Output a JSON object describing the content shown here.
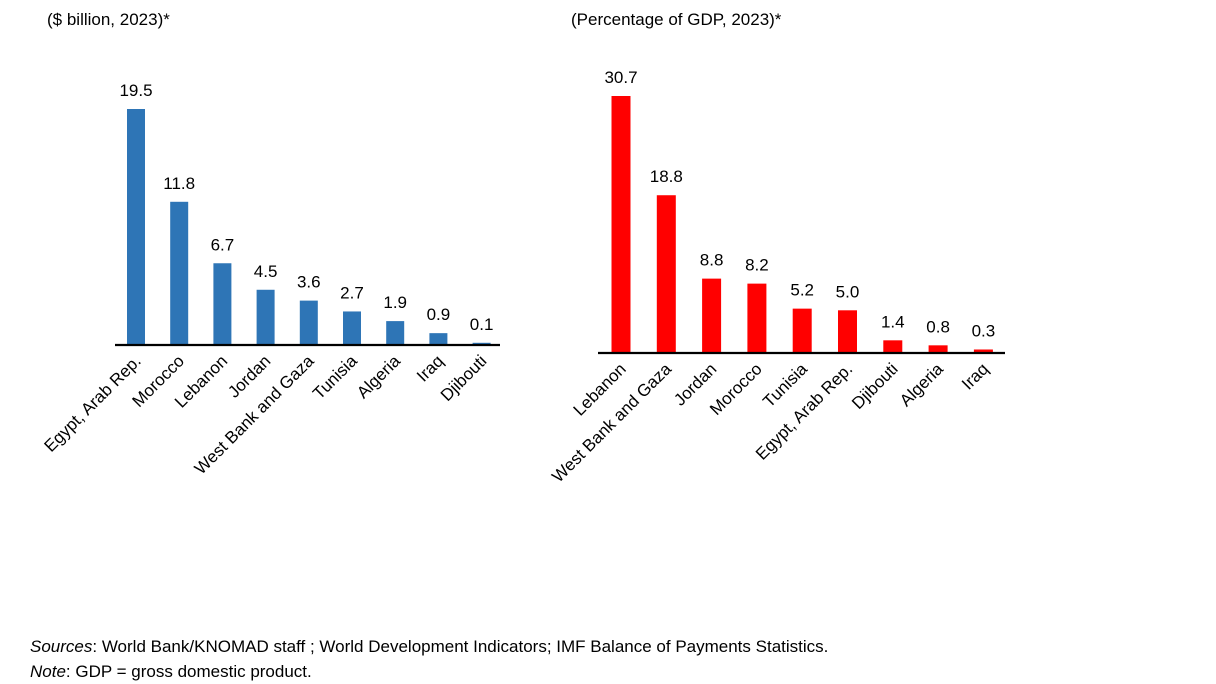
{
  "chart_data": [
    {
      "type": "bar",
      "title": "",
      "subtitle": "($ billion, 2023)*",
      "xlabel": "",
      "ylabel": "",
      "categories": [
        "Egypt, Arab Rep.",
        "Morocco",
        "Lebanon",
        "Jordan",
        "West Bank and Gaza",
        "Tunisia",
        "Algeria",
        "Iraq",
        "Djibouti"
      ],
      "values": [
        19.5,
        11.8,
        6.7,
        4.5,
        3.6,
        2.7,
        1.9,
        0.9,
        0.1
      ],
      "data_labels": [
        "19.5",
        "11.8",
        "6.7",
        "4.5",
        "3.6",
        "2.7",
        "1.9",
        "0.9",
        "0.1"
      ],
      "color": "#2E75B6",
      "grid": false,
      "legend": "none",
      "ylim": [
        0,
        19.5
      ]
    },
    {
      "type": "bar",
      "title": "",
      "subtitle": "(Percentage of GDP, 2023)*",
      "xlabel": "",
      "ylabel": "",
      "categories": [
        "Lebanon",
        "West Bank and Gaza",
        "Jordan",
        "Morocco",
        "Tunisia",
        "Egypt, Arab Rep.",
        "Djibouti",
        "Algeria",
        "Iraq"
      ],
      "values": [
        30.7,
        18.8,
        8.8,
        8.2,
        5.2,
        5.0,
        1.4,
        0.8,
        0.3
      ],
      "data_labels": [
        "30.7",
        "18.8",
        "8.8",
        "8.2",
        "5.2",
        "5.0",
        "1.4",
        "0.8",
        "0.3"
      ],
      "color": "#FF0000",
      "grid": false,
      "legend": "none",
      "ylim": [
        0,
        30.7
      ]
    }
  ],
  "footer": {
    "sources_label": "Sources",
    "sources_text": ": World Bank/KNOMAD staff ; World Development Indicators; IMF Balance of Payments Statistics.",
    "note_label": "Note",
    "note_text": ": GDP = gross domestic product."
  }
}
